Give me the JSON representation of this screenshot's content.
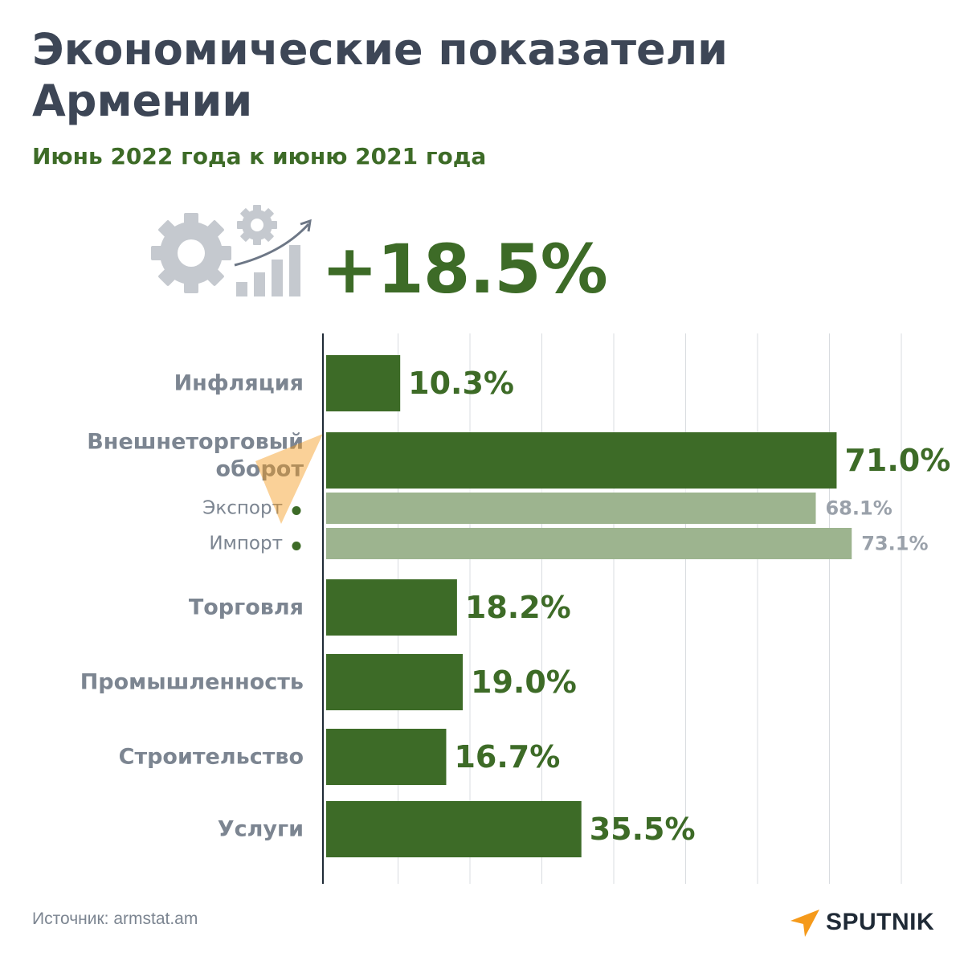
{
  "header": {
    "title": "Экономические показатели Армении",
    "subtitle": "Июнь 2022 года к июню 2021 года"
  },
  "headline": {
    "value": "+18.5%",
    "icon": "gears-growth-chart-icon"
  },
  "watermark": "SPUTNIK",
  "footer": {
    "source": "Источник: armstat.am",
    "logo_text": "SPUTNIK"
  },
  "colors": {
    "primary_green": "#3d6b27",
    "light_green": "#9db48f",
    "label_gray": "#7c8591",
    "title_dark": "#3d4656",
    "icon_gray": "#c5c9cf",
    "logo_orange": "#f59a1b"
  },
  "chart_data": {
    "type": "bar",
    "orientation": "horizontal",
    "xlim": [
      0,
      80
    ],
    "grid": true,
    "categories": [
      "Инфляция",
      "Внешнеторговый оборот",
      "Экспорт",
      "Импорт",
      "Торговля",
      "Промышленность",
      "Строительство",
      "Услуги"
    ],
    "values": [
      10.3,
      71.0,
      68.1,
      73.1,
      18.2,
      19.0,
      16.7,
      35.5
    ],
    "value_labels": [
      "10.3%",
      "71.0%",
      "68.1%",
      "73.1%",
      "18.2%",
      "19.0%",
      "16.7%",
      "35.5%"
    ],
    "category_lines": [
      [
        "Инфляция"
      ],
      [
        "Внешнеторговый",
        "оборот"
      ],
      [
        "Экспорт"
      ],
      [
        "Импорт"
      ],
      [
        "Торговля"
      ],
      [
        "Промышленность"
      ],
      [
        "Строительство"
      ],
      [
        "Услуги"
      ]
    ],
    "sub_items": [
      false,
      false,
      true,
      true,
      false,
      false,
      false,
      false
    ]
  }
}
